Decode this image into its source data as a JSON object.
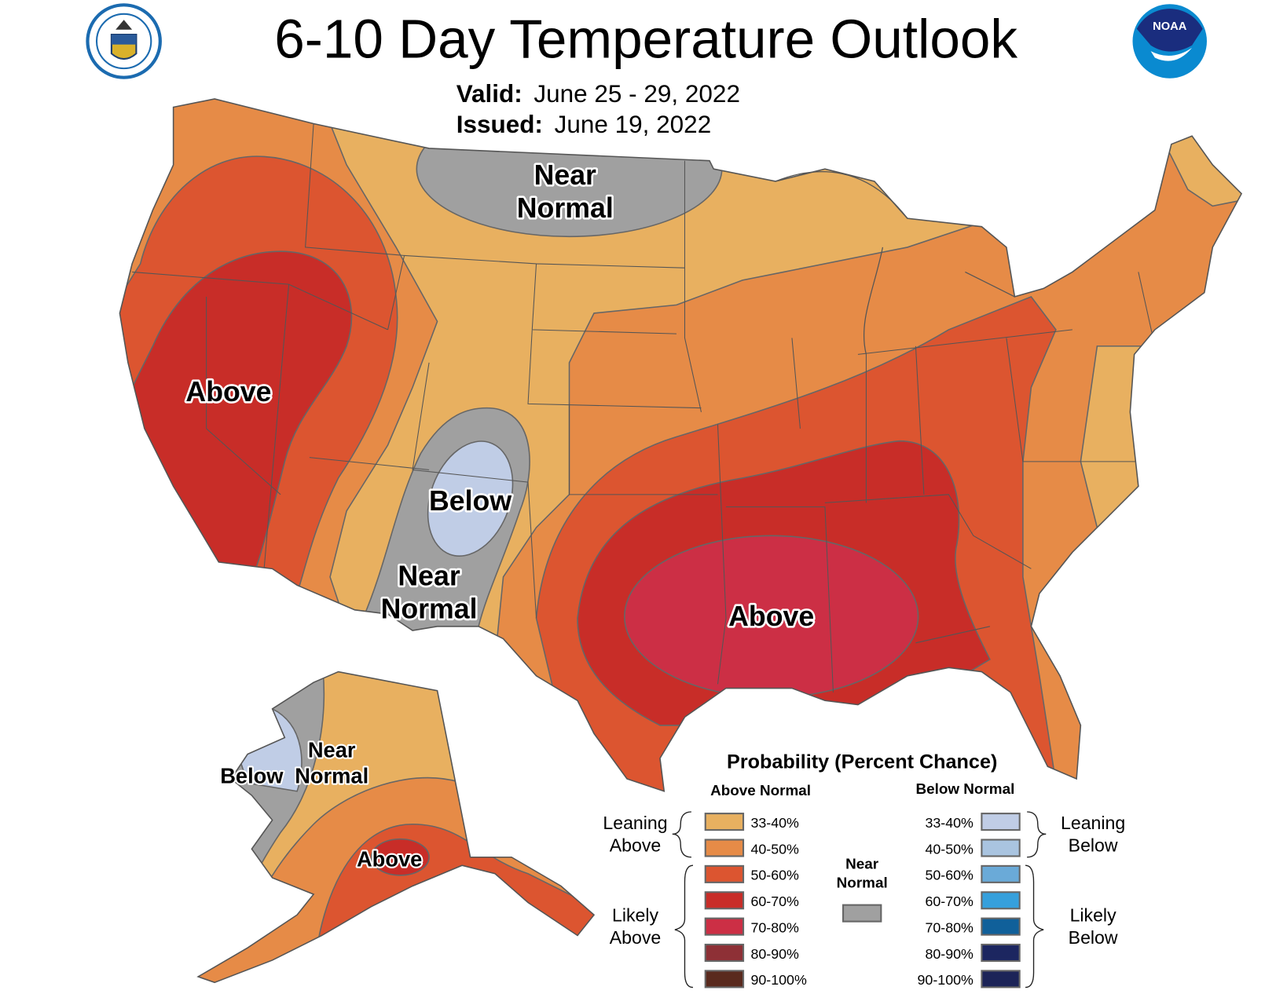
{
  "header": {
    "title": "6-10 Day Temperature Outlook",
    "valid_label": "Valid:",
    "valid_value": "June 25 - 29, 2022",
    "issued_label": "Issued:",
    "issued_value": "June 19, 2022",
    "left_logo": "Department of Commerce seal — DEPARTMENT OF COMMERCE · UNITED STATES OF AMERICA",
    "right_logo": "NOAA"
  },
  "map_labels": {
    "west_above": "Above",
    "north_near_1": "Near",
    "north_near_2": "Normal",
    "below": "Below",
    "sw_near_1": "Near",
    "sw_near_2": "Normal",
    "south_above": "Above",
    "ak_near": "Near",
    "ak_below": "Below",
    "ak_normal": "Normal",
    "ak_above": "Above"
  },
  "colors": {
    "above_33_40": "#e8b060",
    "above_40_50": "#e68b47",
    "above_50_60": "#dc5530",
    "above_60_70": "#c82d28",
    "above_70_80": "#cc2f45",
    "near_normal": "#a0a0a0",
    "below_33_40": "#c0cde6"
  },
  "legend": {
    "title": "Probability (Percent Chance)",
    "above_header": "Above Normal",
    "below_header": "Below Normal",
    "near_1": "Near",
    "near_2": "Normal",
    "near_color": "#a0a0a0",
    "leaning_above_1": "Leaning",
    "leaning_above_2": "Above",
    "likely_above_1": "Likely",
    "likely_above_2": "Above",
    "leaning_below_1": "Leaning",
    "leaning_below_2": "Below",
    "likely_below_1": "Likely",
    "likely_below_2": "Below",
    "above": [
      {
        "range": "33-40%",
        "color": "#e8b060"
      },
      {
        "range": "40-50%",
        "color": "#e68b47"
      },
      {
        "range": "50-60%",
        "color": "#dc5530"
      },
      {
        "range": "60-70%",
        "color": "#c82d28"
      },
      {
        "range": "70-80%",
        "color": "#cc2f45"
      },
      {
        "range": "80-90%",
        "color": "#8e3036"
      },
      {
        "range": "90-100%",
        "color": "#5a2a1e"
      }
    ],
    "below": [
      {
        "range": "33-40%",
        "color": "#c0cde6"
      },
      {
        "range": "40-50%",
        "color": "#a9c4e0"
      },
      {
        "range": "50-60%",
        "color": "#6aaad8"
      },
      {
        "range": "60-70%",
        "color": "#36a0dc"
      },
      {
        "range": "70-80%",
        "color": "#10609a"
      },
      {
        "range": "80-90%",
        "color": "#1c2660"
      },
      {
        "range": "90-100%",
        "color": "#1c2458"
      }
    ]
  }
}
